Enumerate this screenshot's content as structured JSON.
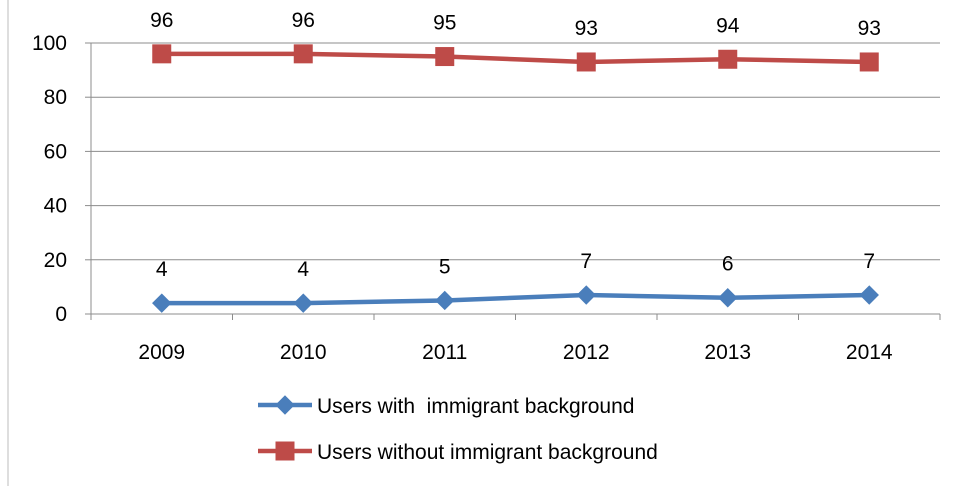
{
  "chart_data": {
    "type": "line",
    "title": "",
    "xlabel": "",
    "ylabel": "",
    "categories": [
      "2009",
      "2010",
      "2011",
      "2012",
      "2013",
      "2014"
    ],
    "ylim": [
      0,
      100
    ],
    "yticks": [
      0,
      20,
      40,
      60,
      80,
      100
    ],
    "grid": "horizontal",
    "legend_position": "bottom",
    "series": [
      {
        "name": "Users with  immigrant background",
        "values": [
          4,
          4,
          5,
          7,
          6,
          7
        ],
        "labels": [
          "4",
          "4",
          "5",
          "7",
          "6",
          "7"
        ],
        "color": "#4a7ebb",
        "marker": "diamond"
      },
      {
        "name": "Users without immigrant background",
        "values": [
          96,
          96,
          95,
          93,
          94,
          93
        ],
        "labels": [
          "96",
          "96",
          "95",
          "93",
          "94",
          "93"
        ],
        "color": "#be4b48",
        "marker": "square"
      }
    ]
  }
}
